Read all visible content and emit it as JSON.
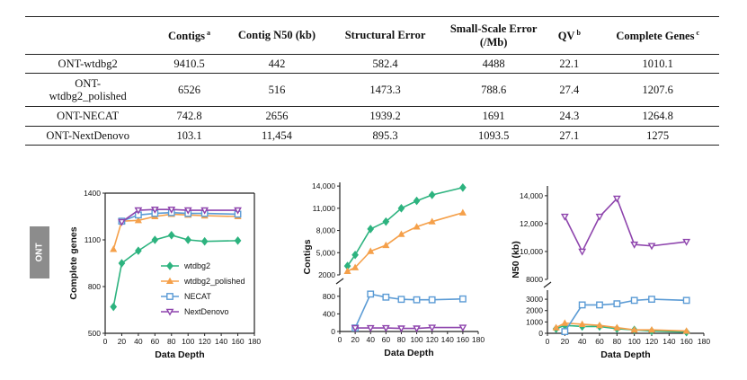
{
  "table": {
    "headers": [
      {
        "text": "",
        "sup": ""
      },
      {
        "text": "Contigs",
        "sup": "a"
      },
      {
        "text": "Contig N50 (kb)",
        "sup": ""
      },
      {
        "text": "Structural Error",
        "sup": ""
      },
      {
        "text": "Small-Scale Error (/Mb)",
        "sup": ""
      },
      {
        "text": "QV",
        "sup": "b"
      },
      {
        "text": "Complete Genes",
        "sup": "c"
      }
    ],
    "rows": [
      [
        "ONT-wtdbg2",
        "9410.5",
        "442",
        "582.4",
        "4488",
        "22.1",
        "1010.1"
      ],
      [
        "ONT-wtdbg2_polished",
        "6526",
        "516",
        "1473.3",
        "788.6",
        "27.4",
        "1207.6"
      ],
      [
        "ONT-NECAT",
        "742.8",
        "2656",
        "1939.2",
        "1691",
        "24.3",
        "1264.8"
      ],
      [
        "ONT-NextDenovo",
        "103.1",
        "11,454",
        "895.3",
        "1093.5",
        "27.1",
        "1275"
      ]
    ],
    "row2_label_lines": [
      "ONT-",
      "wtdbg2_polished"
    ]
  },
  "side_label": "ONT",
  "colors": {
    "wtdbg2": "#2db37f",
    "wtdbg2_polished": "#f5a04a",
    "NECAT": "#5b9bd5",
    "NextDenovo": "#8e44ad"
  },
  "chart_data": [
    {
      "type": "line",
      "title": "",
      "xlabel": "Data Depth",
      "ylabel": "Complete genes",
      "xlim": [
        0,
        180
      ],
      "ylim": [
        500,
        1400
      ],
      "xticks": [
        0,
        20,
        40,
        60,
        80,
        100,
        120,
        140,
        160,
        180
      ],
      "yticks": [
        500,
        800,
        1100,
        1400
      ],
      "x": [
        10,
        20,
        40,
        60,
        80,
        100,
        120,
        160
      ],
      "series": [
        {
          "name": "wtdbg2",
          "key": "wtdbg2",
          "marker": "diamond",
          "values": [
            670,
            950,
            1030,
            1100,
            1130,
            1100,
            1090,
            1095
          ]
        },
        {
          "name": "wtdbg2_polished",
          "key": "wtdbg2_polished",
          "marker": "triangle-up",
          "values": [
            1040,
            1220,
            1225,
            1250,
            1265,
            1260,
            1255,
            1250
          ]
        },
        {
          "name": "NECAT",
          "key": "NECAT",
          "marker": "square",
          "values": [
            null,
            1220,
            1260,
            1270,
            1275,
            1270,
            1270,
            1265
          ]
        },
        {
          "name": "NextDenovo",
          "key": "NextDenovo",
          "marker": "triangle-down",
          "values": [
            null,
            1215,
            1290,
            1295,
            1295,
            1290,
            1290,
            1290
          ]
        }
      ],
      "legend": [
        "wtdbg2",
        "wtdbg2_polished",
        "NECAT",
        "NextDenovo"
      ],
      "legend_position": "center-right"
    },
    {
      "type": "line",
      "title": "",
      "xlabel": "Data Depth",
      "ylabel": "Contigs",
      "xlim": [
        0,
        180
      ],
      "broken_axis": true,
      "ylim_lower": [
        0,
        1000
      ],
      "ylim_upper": [
        2000,
        14000
      ],
      "xticks": [
        0,
        20,
        40,
        60,
        80,
        100,
        120,
        140,
        160,
        180
      ],
      "yticks_lower": [
        "0",
        "400",
        "800"
      ],
      "yticks_upper": [
        "2000",
        "5,000",
        "8,000",
        "11,000",
        "14,000"
      ],
      "x": [
        10,
        20,
        40,
        60,
        80,
        100,
        120,
        160
      ],
      "series": [
        {
          "name": "wtdbg2",
          "key": "wtdbg2",
          "marker": "diamond",
          "values": [
            3200,
            4700,
            8200,
            9200,
            11000,
            12000,
            12800,
            13800
          ]
        },
        {
          "name": "wtdbg2_polished",
          "key": "wtdbg2_polished",
          "marker": "triangle-up",
          "values": [
            2500,
            3000,
            5200,
            6000,
            7500,
            8500,
            9200,
            10400
          ]
        },
        {
          "name": "NECAT",
          "key": "NECAT",
          "marker": "square",
          "values": [
            null,
            80,
            850,
            780,
            730,
            720,
            720,
            740
          ]
        },
        {
          "name": "NextDenovo",
          "key": "NextDenovo",
          "marker": "triangle-down",
          "values": [
            null,
            80,
            80,
            80,
            70,
            70,
            90,
            90
          ]
        }
      ]
    },
    {
      "type": "line",
      "title": "",
      "xlabel": "Data Depth",
      "ylabel": "N50 (kb)",
      "xlim": [
        0,
        180
      ],
      "broken_axis": true,
      "ylim_lower": [
        0,
        3800
      ],
      "ylim_upper": [
        8000,
        14000
      ],
      "xticks": [
        0,
        20,
        40,
        60,
        80,
        100,
        120,
        140,
        160,
        180
      ],
      "yticks_lower": [
        "0",
        "1000",
        "2000",
        "3000"
      ],
      "yticks_upper": [
        "8000",
        "10,000",
        "12,000",
        "14,000"
      ],
      "x": [
        10,
        20,
        40,
        60,
        80,
        100,
        120,
        160
      ],
      "series": [
        {
          "name": "wtdbg2",
          "key": "wtdbg2",
          "marker": "diamond",
          "values": [
            400,
            700,
            600,
            600,
            400,
            300,
            200,
            100
          ]
        },
        {
          "name": "wtdbg2_polished",
          "key": "wtdbg2_polished",
          "marker": "triangle-up",
          "values": [
            500,
            900,
            800,
            700,
            500,
            300,
            300,
            200
          ]
        },
        {
          "name": "NECAT",
          "key": "NECAT",
          "marker": "square",
          "values": [
            null,
            150,
            2500,
            2500,
            2600,
            2900,
            3000,
            2900
          ]
        },
        {
          "name": "NextDenovo",
          "key": "NextDenovo",
          "marker": "triangle-down",
          "values": [
            null,
            12500,
            10000,
            12500,
            13800,
            10500,
            10400,
            10700
          ]
        }
      ]
    }
  ]
}
